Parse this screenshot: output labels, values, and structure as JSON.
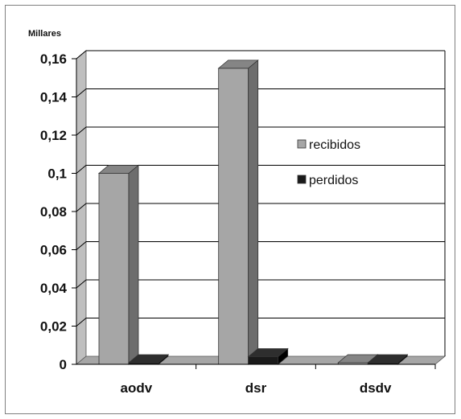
{
  "chart_data": {
    "type": "bar",
    "unit_label": "Millares",
    "categories": [
      "aodv",
      "dsr",
      "dsdv"
    ],
    "series": [
      {
        "name": "recibidos",
        "values": [
          0.1,
          0.155,
          0
        ]
      },
      {
        "name": "perdidos",
        "values": [
          0,
          0.004,
          0
        ]
      }
    ],
    "ylim": [
      0,
      0.16
    ],
    "yticks": [
      "0",
      "0,02",
      "0,04",
      "0,06",
      "0,08",
      "0,1",
      "0,12",
      "0,14",
      "0,16"
    ],
    "grid": true,
    "legend_position": "right",
    "three_d": true,
    "colors": {
      "recibidos_front": "#a6a6a6",
      "recibidos_side": "#6d6d6d",
      "recibidos_top": "#858585",
      "perdidos_front": "#1a1a1a",
      "perdidos_side": "#000000",
      "perdidos_top": "#2e2e2e",
      "grid": "#000000",
      "wall": "#bfbfbf",
      "floor": "#a6a6a6"
    }
  }
}
